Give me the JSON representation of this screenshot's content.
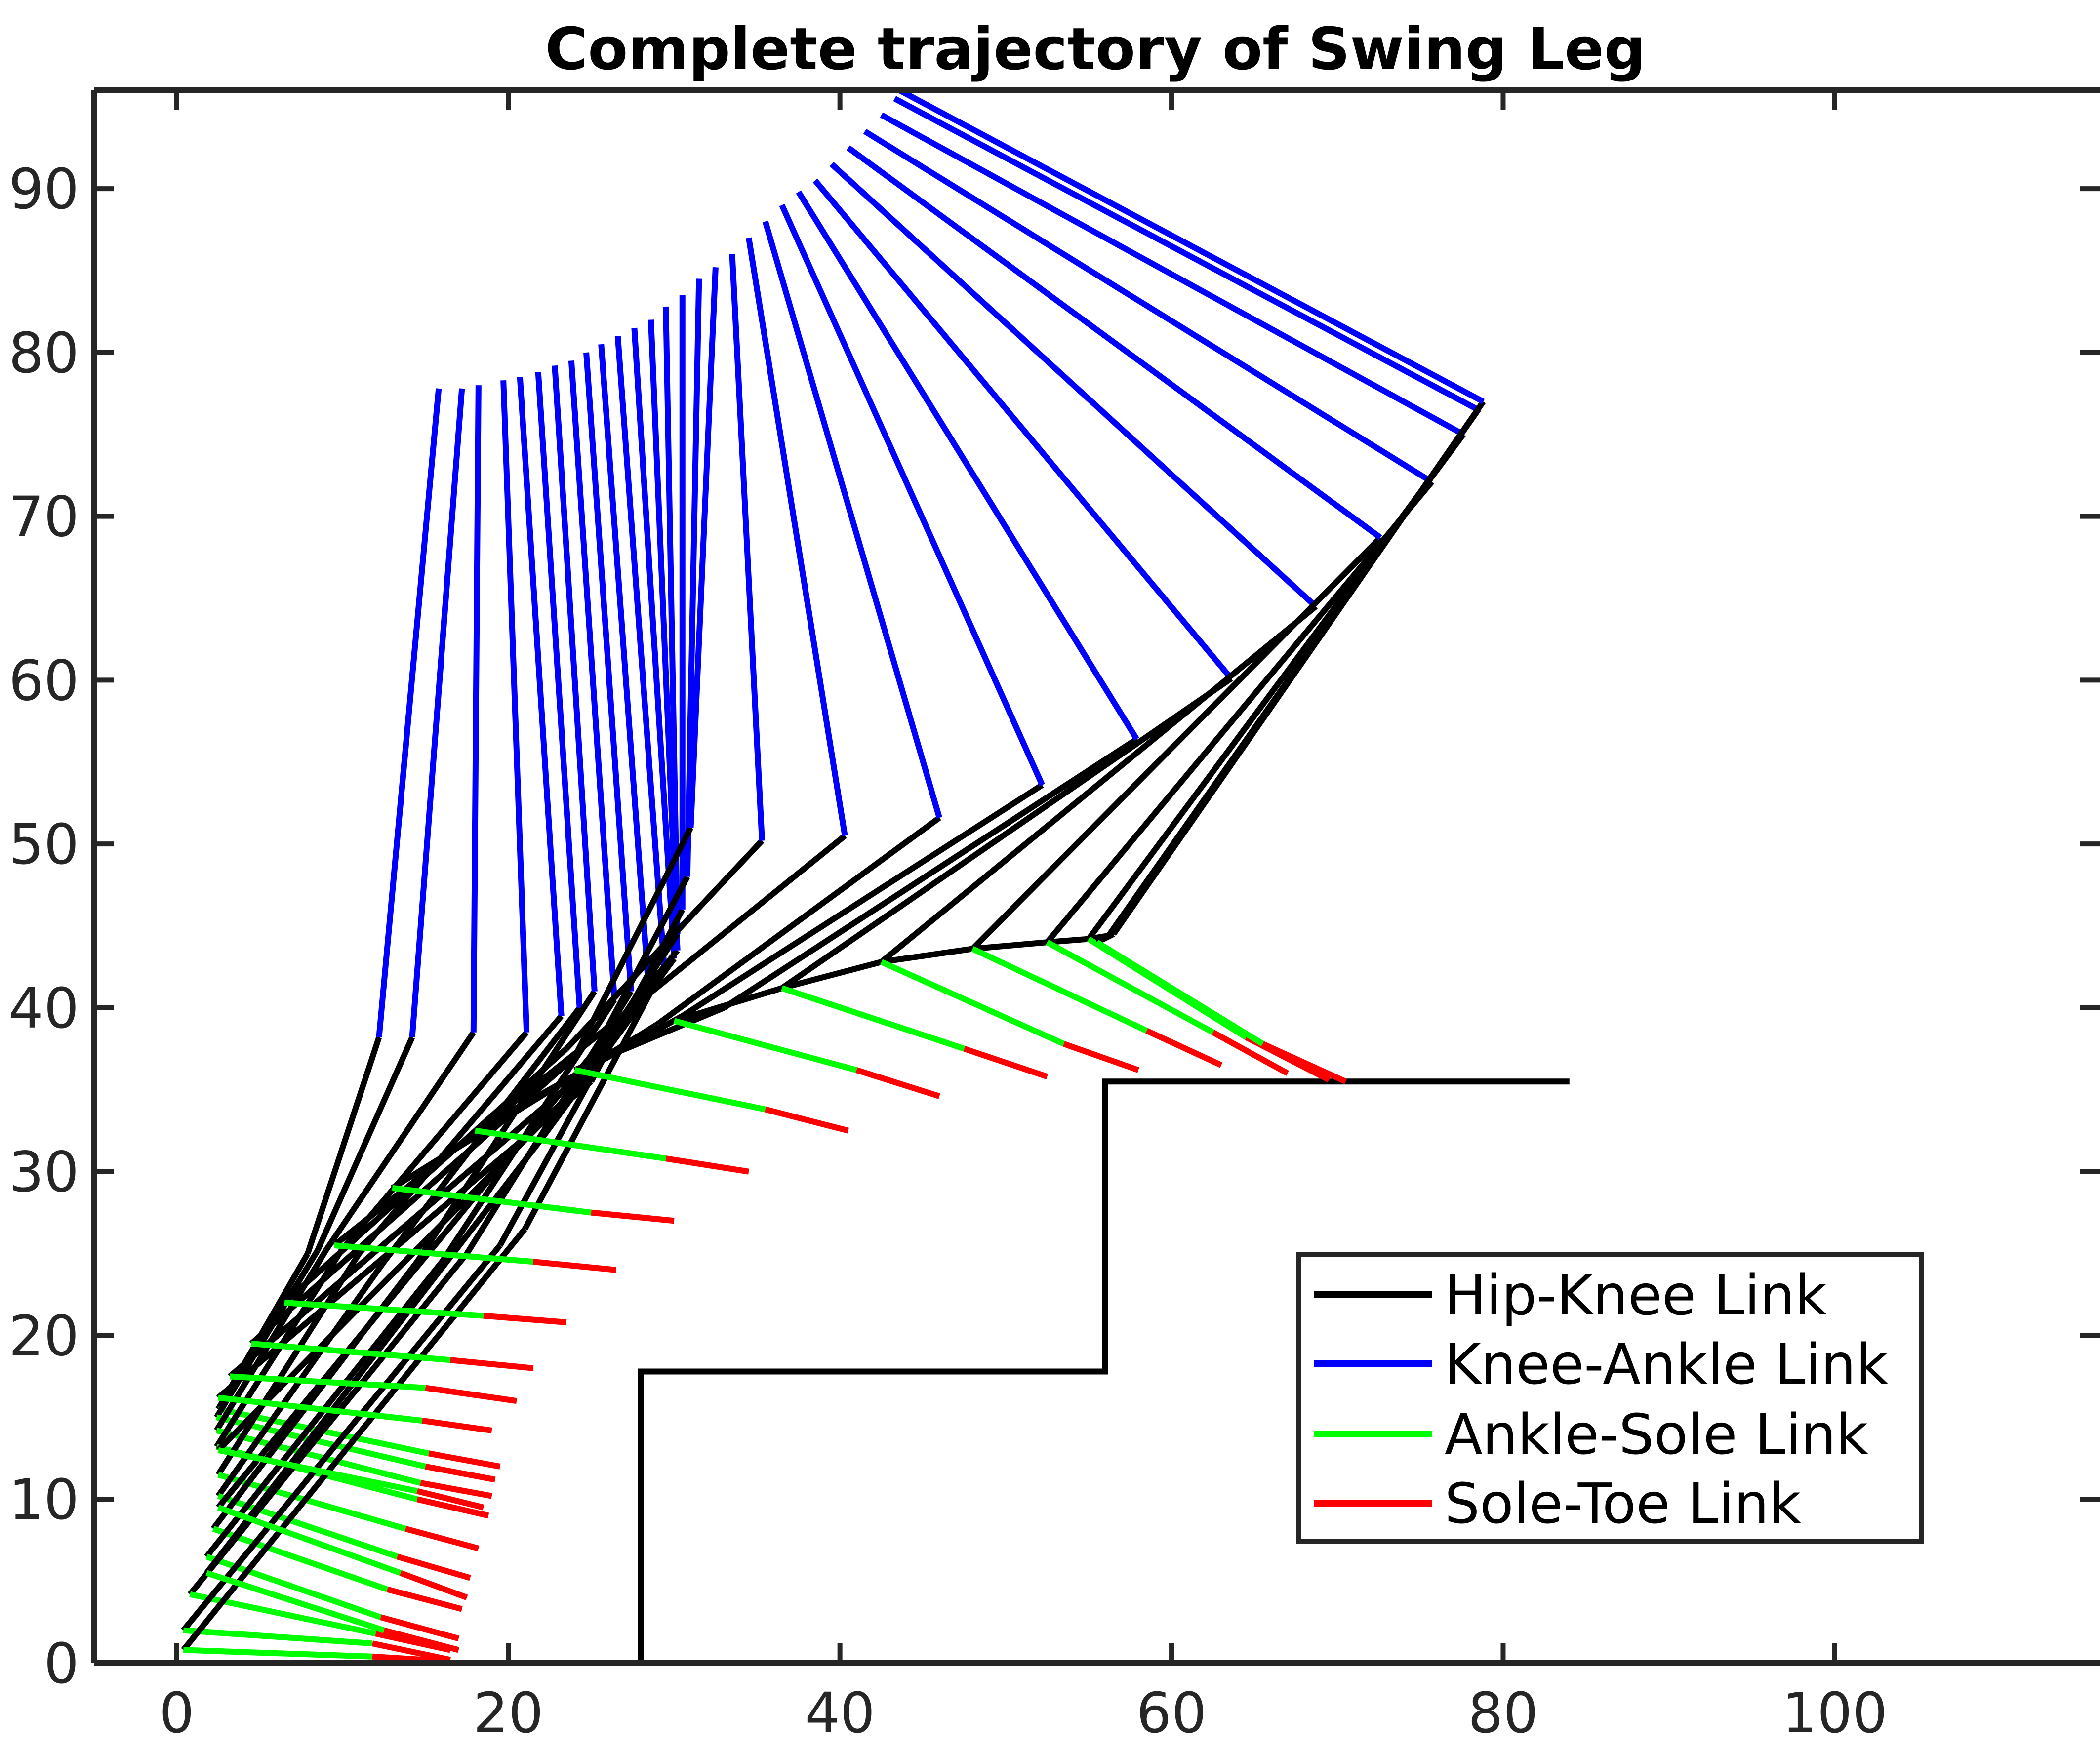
{
  "chart_data": {
    "type": "line",
    "title": "Complete trajectory of Swing Leg",
    "xlabel": "",
    "ylabel": "",
    "xlim": [
      -5,
      116
    ],
    "ylim": [
      0,
      96
    ],
    "x_ticks": [
      0,
      20,
      40,
      60,
      80,
      100
    ],
    "y_ticks": [
      0,
      10,
      20,
      30,
      40,
      50,
      60,
      70,
      80,
      90
    ],
    "grid": false,
    "legend_position": "bottom-right",
    "colors": {
      "hip_knee": "#000000",
      "knee_ankle": "#0000ff",
      "ankle_sole": "#00ff00",
      "sole_toe": "#ff0000",
      "stairs": "#000000",
      "axes": "#262626"
    },
    "legend": [
      {
        "label": "Hip-Knee Link",
        "color": "#000000"
      },
      {
        "label": "Knee-Ankle Link",
        "color": "#0000ff"
      },
      {
        "label": "Ankle-Sole Link",
        "color": "#00ff00"
      },
      {
        "label": "Sole-Toe Link",
        "color": "#ff0000"
      }
    ],
    "stairs": {
      "x": [
        0,
        28,
        28,
        56,
        56,
        84
      ],
      "y": [
        0,
        0,
        17.8,
        17.8,
        35.5,
        35.5
      ]
    },
    "frames": [
      {
        "hip": [
          12.2,
          38.2
        ],
        "knee": [
          7.9,
          25.0
        ],
        "ankle": [
          2.5,
          15.5
        ],
        "sole": [
          15.2,
          12.8
        ],
        "toe": [
          19.5,
          12.0
        ]
      },
      {
        "hip": [
          14.2,
          38.2
        ],
        "knee": [
          8.5,
          25.2
        ],
        "ankle": [
          2.4,
          15.0
        ],
        "sole": [
          15.0,
          12.0
        ],
        "toe": [
          19.2,
          11.2
        ]
      },
      {
        "hip": [
          17.9,
          38.5
        ],
        "knee": [
          9.0,
          25.2
        ],
        "ankle": [
          2.4,
          14.2
        ],
        "sole": [
          14.7,
          11.0
        ],
        "toe": [
          19.0,
          10.2
        ]
      },
      {
        "hip": [
          21.1,
          38.5
        ],
        "knee": [
          10.0,
          25.3
        ],
        "ankle": [
          2.4,
          13.2
        ],
        "sole": [
          14.5,
          10.0
        ],
        "toe": [
          18.8,
          9.0
        ]
      },
      {
        "hip": [
          23.2,
          39.5
        ],
        "knee": [
          11.0,
          25.0
        ],
        "ankle": [
          2.5,
          11.5
        ],
        "sole": [
          13.8,
          8.2
        ],
        "toe": [
          18.2,
          7.0
        ]
      },
      {
        "hip": [
          24.3,
          40.0
        ],
        "knee": [
          12.5,
          24.5
        ],
        "ankle": [
          2.5,
          10.2
        ],
        "sole": [
          13.3,
          6.5
        ],
        "toe": [
          17.7,
          5.2
        ]
      },
      {
        "hip": [
          25.2,
          41.0
        ],
        "knee": [
          14.5,
          24.5
        ],
        "ankle": [
          2.2,
          8.2
        ],
        "sole": [
          12.7,
          4.5
        ],
        "toe": [
          17.2,
          3.3
        ]
      },
      {
        "hip": [
          26.4,
          40.5
        ],
        "knee": [
          16.0,
          24.5
        ],
        "ankle": [
          1.8,
          6.5
        ],
        "sole": [
          12.3,
          2.8
        ],
        "toe": [
          17.0,
          1.5
        ]
      },
      {
        "hip": [
          27.4,
          41.0
        ],
        "knee": [
          17.5,
          25.0
        ],
        "ankle": [
          0.8,
          4.2
        ],
        "sole": [
          12.0,
          1.8
        ],
        "toe": [
          16.5,
          0.8
        ]
      },
      {
        "hip": [
          28.4,
          42.0
        ],
        "knee": [
          19.5,
          25.5
        ],
        "ankle": [
          0.4,
          2.0
        ],
        "sole": [
          11.8,
          1.2
        ],
        "toe": [
          16.5,
          0.2
        ]
      },
      {
        "hip": [
          29.4,
          42.5
        ],
        "knee": [
          21.0,
          26.5
        ],
        "ankle": [
          0.4,
          0.8
        ],
        "sole": [
          11.8,
          0.4
        ],
        "toe": [
          16.5,
          0.1
        ]
      },
      {
        "hip": [
          30.0,
          43.0
        ],
        "knee": [
          22.0,
          32.0
        ],
        "ankle": [
          1.8,
          5.5
        ],
        "sole": [
          12.5,
          2.0
        ],
        "toe": [
          17.0,
          0.8
        ]
      },
      {
        "hip": [
          30.2,
          43.5
        ],
        "knee": [
          22.5,
          34.0
        ],
        "ankle": [
          2.5,
          9.5
        ],
        "sole": [
          13.5,
          5.5
        ],
        "toe": [
          17.5,
          4.0
        ]
      },
      {
        "hip": [
          30.2,
          44.5
        ],
        "knee": [
          24.0,
          35.0
        ],
        "ankle": [
          2.5,
          13.0
        ],
        "sole": [
          14.5,
          10.5
        ],
        "toe": [
          18.5,
          9.5
        ]
      },
      {
        "hip": [
          30.5,
          46.0
        ],
        "knee": [
          25.0,
          35.5
        ],
        "ankle": [
          2.5,
          16.2
        ],
        "sole": [
          14.8,
          14.8
        ],
        "toe": [
          19.0,
          14.2
        ]
      },
      {
        "hip": [
          30.8,
          48.0
        ],
        "knee": [
          24.5,
          36.0
        ],
        "ankle": [
          3.2,
          17.5
        ],
        "sole": [
          15.0,
          16.8
        ],
        "toe": [
          20.5,
          16.0
        ]
      },
      {
        "hip": [
          31.0,
          51.0
        ],
        "knee": [
          24.0,
          37.0
        ],
        "ankle": [
          4.5,
          19.5
        ],
        "sole": [
          16.5,
          18.5
        ],
        "toe": [
          21.5,
          18.0
        ]
      },
      {
        "hip": [
          35.3,
          50.2
        ],
        "knee": [
          23.5,
          37.5
        ],
        "ankle": [
          6.5,
          22.0
        ],
        "sole": [
          18.5,
          21.2
        ],
        "toe": [
          23.5,
          20.8
        ]
      },
      {
        "hip": [
          40.3,
          50.5
        ],
        "knee": [
          25.0,
          38.0
        ],
        "ankle": [
          9.5,
          25.5
        ],
        "sole": [
          21.5,
          24.5
        ],
        "toe": [
          26.5,
          24.0
        ]
      },
      {
        "hip": [
          46.0,
          51.6
        ],
        "knee": [
          29.0,
          39.0
        ],
        "ankle": [
          13.0,
          29.0
        ],
        "sole": [
          25.0,
          27.5
        ],
        "toe": [
          30.0,
          27.0
        ]
      },
      {
        "hip": [
          52.2,
          53.6
        ],
        "knee": [
          30.5,
          39.5
        ],
        "ankle": [
          18.0,
          32.5
        ],
        "sole": [
          29.5,
          30.8
        ],
        "toe": [
          34.5,
          30.0
        ]
      },
      {
        "hip": [
          57.9,
          56.4
        ],
        "knee": [
          33.0,
          40.0
        ],
        "ankle": [
          24.0,
          36.2
        ],
        "sole": [
          35.5,
          33.8
        ],
        "toe": [
          40.5,
          32.5
        ]
      },
      {
        "hip": [
          63.6,
          60.1
        ],
        "knee": [
          36.5,
          41.2
        ],
        "ankle": [
          30.0,
          39.2
        ],
        "sole": [
          41.0,
          36.2
        ],
        "toe": [
          46.0,
          34.6
        ]
      },
      {
        "hip": [
          68.7,
          64.5
        ],
        "knee": [
          42.5,
          42.8
        ],
        "ankle": [
          36.5,
          41.2
        ],
        "sole": [
          47.5,
          37.5
        ],
        "toe": [
          52.5,
          35.8
        ]
      },
      {
        "hip": [
          72.6,
          68.7
        ],
        "knee": [
          48.0,
          43.6
        ],
        "ankle": [
          42.5,
          42.8
        ],
        "sole": [
          53.5,
          37.8
        ],
        "toe": [
          58.0,
          36.2
        ]
      },
      {
        "hip": [
          75.7,
          72.1
        ],
        "knee": [
          52.5,
          44.0
        ],
        "ankle": [
          48.0,
          43.6
        ],
        "sole": [
          58.5,
          38.6
        ],
        "toe": [
          63.0,
          36.5
        ]
      },
      {
        "hip": [
          77.6,
          75.0
        ],
        "knee": [
          55.0,
          44.2
        ],
        "ankle": [
          52.5,
          44.0
        ],
        "sole": [
          62.5,
          38.5
        ],
        "toe": [
          67.0,
          36.0
        ]
      },
      {
        "hip": [
          78.5,
          76.5
        ],
        "knee": [
          56.2,
          44.4
        ],
        "ankle": [
          55.0,
          44.2
        ],
        "sole": [
          64.5,
          38.2
        ],
        "toe": [
          69.5,
          35.6
        ]
      },
      {
        "hip": [
          78.8,
          77.0
        ],
        "knee": [
          56.5,
          44.5
        ],
        "ankle": [
          55.5,
          44.0
        ],
        "sole": [
          65.5,
          37.8
        ],
        "toe": [
          70.5,
          35.5
        ]
      }
    ],
    "knee_ankle_tops": [
      [
        15.8,
        77.8
      ],
      [
        17.2,
        77.8
      ],
      [
        18.2,
        78.0
      ],
      [
        19.7,
        78.3
      ],
      [
        20.7,
        78.5
      ],
      [
        21.8,
        78.8
      ],
      [
        22.8,
        79.2
      ],
      [
        23.8,
        79.5
      ],
      [
        24.7,
        80.0
      ],
      [
        25.6,
        80.5
      ],
      [
        26.6,
        81.0
      ],
      [
        27.6,
        81.5
      ],
      [
        28.6,
        82.0
      ],
      [
        29.5,
        82.8
      ],
      [
        30.5,
        83.5
      ],
      [
        31.5,
        84.5
      ],
      [
        32.5,
        85.2
      ],
      [
        33.5,
        86.0
      ],
      [
        34.5,
        87.0
      ],
      [
        35.5,
        88.0
      ],
      [
        36.5,
        89.0
      ],
      [
        37.5,
        89.8
      ],
      [
        38.5,
        90.5
      ],
      [
        39.5,
        91.5
      ],
      [
        40.5,
        92.5
      ],
      [
        41.5,
        93.5
      ],
      [
        42.5,
        94.5
      ],
      [
        43.3,
        95.5
      ],
      [
        43.6,
        96.0
      ]
    ]
  }
}
